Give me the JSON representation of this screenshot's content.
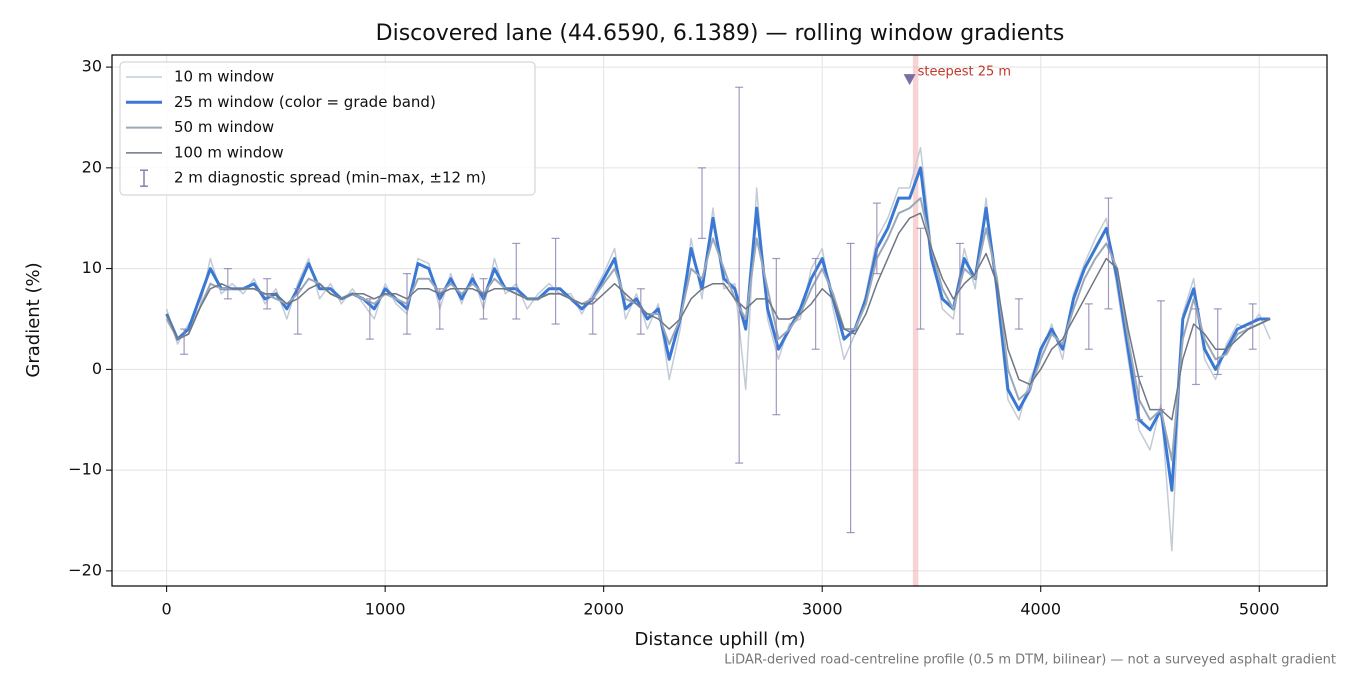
{
  "chart_data": {
    "type": "line",
    "title": "Discovered lane (44.6590, 6.1389) — rolling window gradients",
    "xlabel": "Distance uphill (m)",
    "ylabel": "Gradient (%)",
    "footnote": "LiDAR-derived road-centreline profile (0.5 m DTM, bilinear) — not a surveyed asphalt gradient",
    "xlim": [
      -250,
      5310
    ],
    "ylim": [
      -21.5,
      31.2
    ],
    "xticks": [
      0,
      1000,
      2000,
      3000,
      4000,
      5000
    ],
    "yticks": [
      {
        "value": -20,
        "label": "−20"
      },
      {
        "value": -10,
        "label": "−10"
      },
      0,
      10,
      20,
      30
    ],
    "grid": true,
    "legend": "upper left",
    "x": [
      0,
      50,
      100,
      150,
      200,
      250,
      300,
      350,
      400,
      450,
      500,
      550,
      600,
      650,
      700,
      750,
      800,
      850,
      900,
      950,
      1000,
      1050,
      1100,
      1150,
      1200,
      1250,
      1300,
      1350,
      1400,
      1450,
      1500,
      1550,
      1600,
      1650,
      1700,
      1750,
      1800,
      1850,
      1900,
      1950,
      2000,
      2050,
      2100,
      2150,
      2200,
      2250,
      2300,
      2350,
      2400,
      2450,
      2500,
      2550,
      2600,
      2650,
      2700,
      2750,
      2800,
      2850,
      2900,
      2950,
      3000,
      3050,
      3100,
      3150,
      3200,
      3250,
      3300,
      3350,
      3400,
      3450,
      3500,
      3550,
      3600,
      3650,
      3700,
      3750,
      3800,
      3850,
      3900,
      3950,
      4000,
      4050,
      4100,
      4150,
      4200,
      4250,
      4300,
      4350,
      4400,
      4450,
      4500,
      4550,
      4600,
      4650,
      4700,
      4750,
      4800,
      4850,
      4900,
      4950,
      5000,
      5050
    ],
    "series": [
      {
        "name": "10 m window",
        "color": "#c3cbd6",
        "width": 1.5,
        "values": [
          6,
          2.5,
          4.5,
          6,
          11,
          7.5,
          8.5,
          7.5,
          9,
          6.5,
          8,
          5,
          8.5,
          11,
          7,
          8.5,
          6.5,
          8,
          6.5,
          5,
          8.5,
          6.5,
          5.5,
          11,
          10.5,
          6,
          9.5,
          6.5,
          9.5,
          6,
          11,
          7.5,
          8.5,
          6,
          7.5,
          8.5,
          7.5,
          7.5,
          5.5,
          7.5,
          9.5,
          12,
          5,
          7.5,
          4,
          6.5,
          -1,
          4,
          13,
          7,
          16,
          8,
          8.5,
          -2,
          18,
          5,
          1,
          4.5,
          5,
          10,
          12,
          6,
          1,
          3.5,
          7.5,
          13,
          15,
          18,
          18,
          22,
          12,
          6,
          5,
          12,
          8,
          17,
          7,
          -3,
          -5,
          -1,
          1.5,
          4.5,
          1,
          7.5,
          10.5,
          13,
          15,
          8,
          1,
          -6,
          -8,
          -3.5,
          -18,
          5.5,
          9,
          1,
          -1,
          2.5,
          4.5,
          4,
          5.5,
          3
        ]
      },
      {
        "name": "25 m window (color = grade band)",
        "color": "#3a78d4",
        "width": 3,
        "values": [
          5.5,
          3,
          4,
          7,
          10,
          8,
          8,
          8,
          8.5,
          7,
          7.5,
          6,
          8,
          10.5,
          8,
          8,
          7,
          7.5,
          7,
          6,
          8,
          7,
          6,
          10.5,
          10,
          7,
          9,
          7,
          9,
          7,
          10,
          8,
          8,
          7,
          7,
          8,
          8,
          7,
          6,
          7,
          9,
          11,
          6,
          7,
          5,
          6,
          1,
          5,
          12,
          8,
          15,
          9,
          8,
          4,
          16,
          6,
          2,
          4,
          6,
          9,
          11,
          7,
          3,
          4,
          7,
          12,
          14,
          17,
          17,
          20,
          11,
          7,
          6,
          11,
          9,
          16,
          8,
          -2,
          -4,
          -2,
          2,
          4,
          2,
          7,
          10,
          12,
          14,
          9,
          2,
          -5,
          -6,
          -4,
          -12,
          5,
          8,
          2,
          0,
          2,
          4,
          4.5,
          5,
          5
        ]
      },
      {
        "name": "50 m window",
        "color": "#9aa8b8",
        "width": 2,
        "values": [
          5,
          3,
          3.5,
          6,
          8.5,
          8,
          8,
          8,
          8,
          7.5,
          7,
          6.5,
          7.5,
          9,
          8.5,
          7.5,
          7,
          7.5,
          7,
          6.5,
          7.5,
          7,
          6.5,
          9,
          9,
          7.5,
          8.5,
          7.5,
          8.5,
          7.5,
          9,
          8,
          7.5,
          7,
          7,
          7.5,
          7.5,
          7,
          6.5,
          7,
          8.5,
          10,
          7,
          6.5,
          5.5,
          5.5,
          2.5,
          5,
          10,
          9,
          13,
          10,
          7,
          5,
          13,
          8,
          3,
          4,
          5.5,
          8,
          10,
          7.5,
          4,
          4,
          6.5,
          11,
          13,
          15.5,
          16,
          17,
          12,
          8,
          6,
          10,
          9,
          14,
          9,
          0,
          -3,
          -2,
          1,
          3.5,
          2.5,
          6,
          9,
          11,
          12.5,
          10,
          3,
          -3,
          -5,
          -4,
          -9,
          3,
          7,
          3,
          1,
          1.5,
          3.5,
          4,
          4.5,
          5
        ]
      },
      {
        "name": "100 m window",
        "color": "#6f7784",
        "width": 1.5,
        "values": [
          5.5,
          3,
          3.5,
          6,
          8,
          8.5,
          8,
          8,
          8,
          7.5,
          7.5,
          6.5,
          7,
          8,
          8.5,
          7.5,
          7,
          7.5,
          7.5,
          7,
          7.5,
          7.5,
          7,
          8,
          8,
          7.5,
          8,
          8,
          8,
          7.5,
          8,
          8,
          7.5,
          7,
          7,
          7.5,
          7.5,
          7,
          6.5,
          6.5,
          7.5,
          8.5,
          7.5,
          6.5,
          5.5,
          5,
          4,
          5,
          7,
          8,
          8.5,
          8.5,
          7,
          6,
          7,
          7,
          5,
          5,
          5.5,
          6.5,
          8,
          7,
          4,
          3.5,
          5.5,
          8.5,
          11,
          13.5,
          15,
          15.5,
          12,
          9,
          7,
          8.5,
          9.5,
          11.5,
          8.5,
          2,
          -1,
          -1.5,
          0,
          2,
          3,
          5,
          7,
          9,
          11,
          10,
          4,
          -1,
          -4,
          -4,
          -5,
          1,
          4.5,
          3.5,
          2,
          2,
          3,
          4,
          4.5,
          5
        ]
      }
    ],
    "spread": {
      "name": "2 m diagnostic spread (min–max, ±12 m)",
      "color": "#8a80b0",
      "x": [
        80,
        280,
        460,
        600,
        930,
        1100,
        1250,
        1450,
        1600,
        1780,
        1950,
        2170,
        2450,
        2620,
        2790,
        2970,
        3130,
        3250,
        3450,
        3630,
        3900,
        4220,
        4310,
        4450,
        4550,
        4710,
        4810,
        4970
      ],
      "low": [
        1.5,
        7,
        6,
        3.5,
        3,
        3.5,
        4,
        5,
        5,
        4.5,
        3.5,
        3.5,
        13,
        -9.3,
        -4.5,
        2,
        -16.2,
        9.5,
        4,
        3.5,
        4,
        2,
        6,
        -5,
        -4,
        -1.5,
        -0.5,
        2
      ],
      "high": [
        4,
        10,
        9,
        8,
        7,
        9.5,
        8,
        9,
        12.5,
        13,
        7,
        8,
        20,
        28,
        11,
        11,
        12.5,
        16.5,
        14,
        12.5,
        7,
        6.5,
        17,
        -0.7,
        6.8,
        6,
        6,
        6.5
      ]
    },
    "highlight_span": [
      3415,
      3440
    ],
    "annotation": {
      "x": 3400,
      "y": 28.8,
      "text": "steepest 25 m"
    }
  }
}
